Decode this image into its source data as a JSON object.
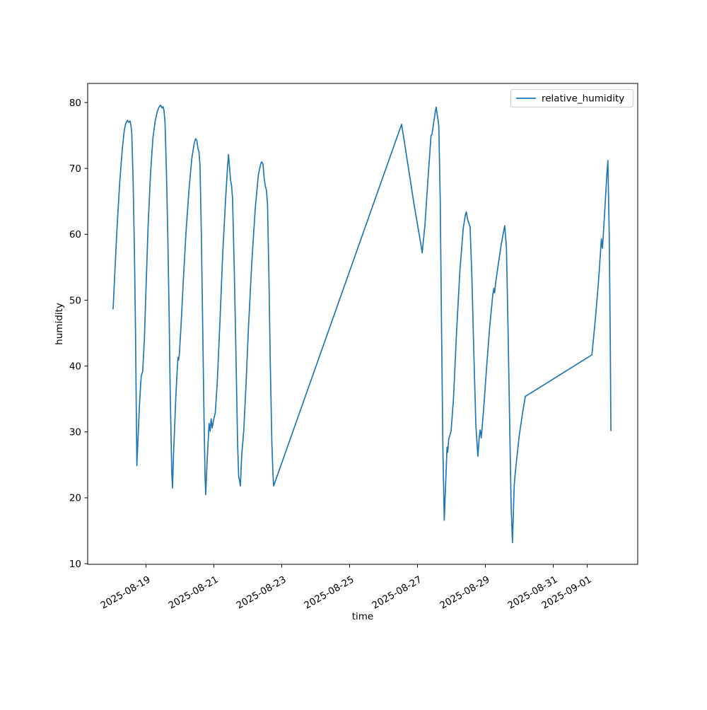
{
  "chart_data": {
    "type": "line",
    "title": "",
    "xlabel": "time",
    "ylabel": "humidity",
    "legend": [
      "relative_humidity"
    ],
    "legend_position": "upper right",
    "grid": false,
    "line_color": "#1f77b4",
    "x_unit": "days since 2025-08-19 00:00",
    "xlim": [
      -1.72,
      14.49
    ],
    "ylim": [
      9.9,
      82.9
    ],
    "yticks": [
      10,
      20,
      30,
      40,
      50,
      60,
      70,
      80
    ],
    "xticks": [
      {
        "d": 0,
        "label": "2025-08-19"
      },
      {
        "d": 2,
        "label": "2025-08-21"
      },
      {
        "d": 4,
        "label": "2025-08-23"
      },
      {
        "d": 6,
        "label": "2025-08-25"
      },
      {
        "d": 8,
        "label": "2025-08-27"
      },
      {
        "d": 10,
        "label": "2025-08-29"
      },
      {
        "d": 12,
        "label": "2025-08-31"
      },
      {
        "d": 13,
        "label": "2025-09-01"
      }
    ],
    "series": [
      {
        "name": "relative_humidity",
        "points": [
          [
            -0.97,
            48.7
          ],
          [
            -0.93,
            53
          ],
          [
            -0.86,
            60.5
          ],
          [
            -0.78,
            67.5
          ],
          [
            -0.7,
            73
          ],
          [
            -0.64,
            75.8
          ],
          [
            -0.6,
            76.8
          ],
          [
            -0.55,
            77.3
          ],
          [
            -0.51,
            77
          ],
          [
            -0.47,
            77.2
          ],
          [
            -0.44,
            76.4
          ],
          [
            -0.42,
            75.3
          ],
          [
            -0.38,
            68
          ],
          [
            -0.34,
            57
          ],
          [
            -0.31,
            45
          ],
          [
            -0.29,
            35
          ],
          [
            -0.27,
            24.9
          ],
          [
            -0.24,
            28.5
          ],
          [
            -0.2,
            33.5
          ],
          [
            -0.16,
            37.2
          ],
          [
            -0.14,
            38.5
          ],
          [
            -0.1,
            39.2
          ],
          [
            -0.05,
            44
          ],
          [
            0,
            52
          ],
          [
            0.06,
            61
          ],
          [
            0.13,
            69
          ],
          [
            0.2,
            74.5
          ],
          [
            0.27,
            77.2
          ],
          [
            0.33,
            78.6
          ],
          [
            0.38,
            79.3
          ],
          [
            0.43,
            79.6
          ],
          [
            0.47,
            79.2
          ],
          [
            0.5,
            79.4
          ],
          [
            0.53,
            78.8
          ],
          [
            0.56,
            77
          ],
          [
            0.6,
            70
          ],
          [
            0.64,
            60
          ],
          [
            0.68,
            48
          ],
          [
            0.71,
            37
          ],
          [
            0.74,
            28.5
          ],
          [
            0.76,
            23.8
          ],
          [
            0.78,
            21.5
          ],
          [
            0.81,
            26.5
          ],
          [
            0.85,
            31.5
          ],
          [
            0.88,
            35.5
          ],
          [
            0.92,
            39.5
          ],
          [
            0.94,
            41.3
          ],
          [
            0.96,
            40.9
          ],
          [
            0.98,
            41.7
          ],
          [
            1.03,
            46
          ],
          [
            1.1,
            53
          ],
          [
            1.18,
            60.5
          ],
          [
            1.27,
            67
          ],
          [
            1.35,
            71.5
          ],
          [
            1.42,
            73.8
          ],
          [
            1.46,
            74.5
          ],
          [
            1.5,
            74.2
          ],
          [
            1.53,
            73
          ],
          [
            1.56,
            72.6
          ],
          [
            1.59,
            70.5
          ],
          [
            1.63,
            60
          ],
          [
            1.67,
            46
          ],
          [
            1.71,
            32
          ],
          [
            1.74,
            23
          ],
          [
            1.76,
            20.5
          ],
          [
            1.8,
            25.5
          ],
          [
            1.84,
            29.5
          ],
          [
            1.86,
            31.3
          ],
          [
            1.89,
            30.1
          ],
          [
            1.92,
            32
          ],
          [
            1.95,
            30.6
          ],
          [
            2.0,
            32
          ],
          [
            2.04,
            32.9
          ],
          [
            2.1,
            37.5
          ],
          [
            2.18,
            47
          ],
          [
            2.26,
            57
          ],
          [
            2.34,
            65
          ],
          [
            2.4,
            70
          ],
          [
            2.43,
            72.1
          ],
          [
            2.46,
            70.3
          ],
          [
            2.49,
            68.2
          ],
          [
            2.52,
            67.4
          ],
          [
            2.55,
            65.5
          ],
          [
            2.6,
            55
          ],
          [
            2.65,
            42
          ],
          [
            2.7,
            28
          ],
          [
            2.73,
            23.2
          ],
          [
            2.75,
            22.8
          ],
          [
            2.78,
            21.8
          ],
          [
            2.82,
            26.5
          ],
          [
            2.85,
            28.3
          ],
          [
            2.88,
            30.3
          ],
          [
            2.94,
            36.5
          ],
          [
            3.02,
            46
          ],
          [
            3.12,
            56
          ],
          [
            3.22,
            64
          ],
          [
            3.31,
            69
          ],
          [
            3.38,
            70.7
          ],
          [
            3.41,
            71
          ],
          [
            3.45,
            70.6
          ],
          [
            3.48,
            68.5
          ],
          [
            3.52,
            67.2
          ],
          [
            3.55,
            66.7
          ],
          [
            3.58,
            64.5
          ],
          [
            3.62,
            54
          ],
          [
            3.66,
            41
          ],
          [
            3.71,
            28
          ],
          [
            3.74,
            23.6
          ],
          [
            3.76,
            21.8
          ],
          [
            7.53,
            76.7
          ],
          [
            7.6,
            74.5
          ],
          [
            7.75,
            69.5
          ],
          [
            7.9,
            64.5
          ],
          [
            8.05,
            60
          ],
          [
            8.14,
            57.2
          ],
          [
            8.22,
            61.5
          ],
          [
            8.31,
            68.5
          ],
          [
            8.4,
            75
          ],
          [
            8.43,
            75.2
          ],
          [
            8.48,
            77
          ],
          [
            8.52,
            78.5
          ],
          [
            8.55,
            79.3
          ],
          [
            8.58,
            78.2
          ],
          [
            8.61,
            77.2
          ],
          [
            8.63,
            76.3
          ],
          [
            8.67,
            65
          ],
          [
            8.71,
            45
          ],
          [
            8.75,
            27
          ],
          [
            8.79,
            16.6
          ],
          [
            8.83,
            22
          ],
          [
            8.87,
            27.7
          ],
          [
            8.89,
            26.9
          ],
          [
            8.92,
            28.9
          ],
          [
            8.99,
            30.1
          ],
          [
            9.06,
            35
          ],
          [
            9.15,
            45
          ],
          [
            9.25,
            54.5
          ],
          [
            9.35,
            61
          ],
          [
            9.41,
            62.9
          ],
          [
            9.44,
            63.4
          ],
          [
            9.48,
            62.2
          ],
          [
            9.52,
            61.6
          ],
          [
            9.55,
            61.1
          ],
          [
            9.6,
            54
          ],
          [
            9.66,
            42
          ],
          [
            9.72,
            31
          ],
          [
            9.78,
            26.3
          ],
          [
            9.82,
            29.3
          ],
          [
            9.85,
            30.3
          ],
          [
            9.88,
            29.1
          ],
          [
            9.95,
            33.5
          ],
          [
            10.04,
            40
          ],
          [
            10.13,
            46
          ],
          [
            10.22,
            50.9
          ],
          [
            10.25,
            51.8
          ],
          [
            10.27,
            51.1
          ],
          [
            10.31,
            52.9
          ],
          [
            10.38,
            55.4
          ],
          [
            10.48,
            58.8
          ],
          [
            10.57,
            61.3
          ],
          [
            10.62,
            58
          ],
          [
            10.67,
            45
          ],
          [
            10.72,
            30
          ],
          [
            10.76,
            18.5
          ],
          [
            10.8,
            13.2
          ],
          [
            10.85,
            21.9
          ],
          [
            10.9,
            24.8
          ],
          [
            11.0,
            29.5
          ],
          [
            11.1,
            33
          ],
          [
            11.18,
            35.4
          ],
          [
            13.14,
            41.7
          ],
          [
            13.24,
            47
          ],
          [
            13.33,
            52.5
          ],
          [
            13.39,
            57
          ],
          [
            13.42,
            59.3
          ],
          [
            13.45,
            57.9
          ],
          [
            13.48,
            60.2
          ],
          [
            13.53,
            64.5
          ],
          [
            13.58,
            69
          ],
          [
            13.61,
            71.2
          ],
          [
            13.65,
            60
          ],
          [
            13.68,
            45
          ],
          [
            13.7,
            30.2
          ]
        ]
      }
    ]
  }
}
